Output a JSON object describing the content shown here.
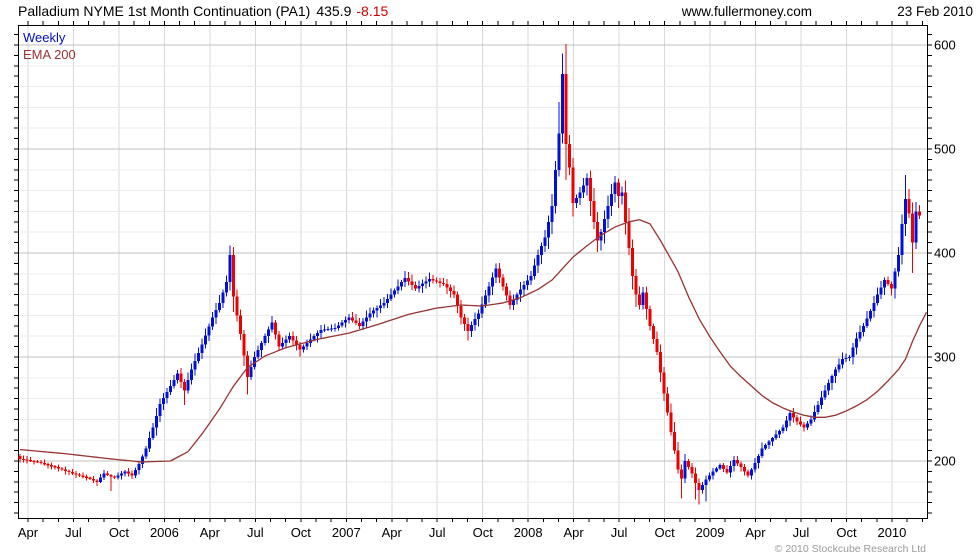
{
  "header": {
    "title": "Palladium NYME 1st Month Continuation (PA1)",
    "last_price": "435.9",
    "change": "-8.15",
    "site": "www.fullermoney.com",
    "date": "23 Feb 2010"
  },
  "legend": {
    "series": "Weekly",
    "overlay": "EMA 200"
  },
  "footer": {
    "copyright": "© 2010 Stockcube Research Ltd"
  },
  "colors": {
    "up": "#0010d8",
    "down": "#ee0000",
    "ema": "#993333",
    "change_text": "#cc0000",
    "grid_minor": "#ebebeb",
    "grid_major": "#c0c0c0",
    "grid_vert": "#d9d9d9",
    "axis": "#000000",
    "legend_series": "#0010c8",
    "legend_overlay": "#993333",
    "copyright": "#9a9a9a"
  },
  "chart_data": {
    "type": "candlestick",
    "title": "Palladium NYME 1st Month Continuation (PA1)",
    "interval": "weekly",
    "start_week": "2005-03-16",
    "weeks": 258,
    "last_close": 435.9,
    "change": -8.15,
    "ylim": [
      145,
      619
    ],
    "y_ticks": [
      200,
      300,
      400,
      500,
      600
    ],
    "y_minor_step": 20,
    "x_labels": [
      "Apr",
      "Jul",
      "Oct",
      "2006",
      "Apr",
      "Jul",
      "Oct",
      "2007",
      "Apr",
      "Jul",
      "Oct",
      "2008",
      "Apr",
      "Jul",
      "Oct",
      "2009",
      "Apr",
      "Jul",
      "Oct",
      "2010"
    ],
    "grid": true,
    "legend_position": "top-left",
    "close_anchors": [
      [
        0,
        202
      ],
      [
        5,
        199
      ],
      [
        10,
        194
      ],
      [
        15,
        188
      ],
      [
        19,
        184
      ],
      [
        22,
        180
      ],
      [
        24,
        188
      ],
      [
        27,
        184
      ],
      [
        30,
        190
      ],
      [
        32,
        186
      ],
      [
        34,
        197
      ],
      [
        36,
        212
      ],
      [
        38,
        232
      ],
      [
        40,
        255
      ],
      [
        43,
        272
      ],
      [
        45,
        284
      ],
      [
        47,
        268
      ],
      [
        49,
        288
      ],
      [
        52,
        312
      ],
      [
        55,
        338
      ],
      [
        57,
        352
      ],
      [
        59,
        372
      ],
      [
        60,
        398
      ],
      [
        61,
        358
      ],
      [
        63,
        322
      ],
      [
        65,
        281
      ],
      [
        67,
        300
      ],
      [
        70,
        320
      ],
      [
        72,
        333
      ],
      [
        74,
        310
      ],
      [
        77,
        320
      ],
      [
        80,
        307
      ],
      [
        83,
        317
      ],
      [
        86,
        326
      ],
      [
        90,
        328
      ],
      [
        94,
        338
      ],
      [
        97,
        330
      ],
      [
        100,
        342
      ],
      [
        104,
        352
      ],
      [
        108,
        368
      ],
      [
        110,
        376
      ],
      [
        113,
        366
      ],
      [
        117,
        375
      ],
      [
        121,
        370
      ],
      [
        124,
        360
      ],
      [
        126,
        338
      ],
      [
        128,
        325
      ],
      [
        131,
        342
      ],
      [
        134,
        368
      ],
      [
        136,
        385
      ],
      [
        138,
        368
      ],
      [
        140,
        350
      ],
      [
        143,
        365
      ],
      [
        146,
        378
      ],
      [
        148,
        398
      ],
      [
        150,
        415
      ],
      [
        152,
        445
      ],
      [
        154,
        515
      ],
      [
        155,
        572
      ],
      [
        156,
        505
      ],
      [
        157,
        482
      ],
      [
        158,
        448
      ],
      [
        160,
        458
      ],
      [
        162,
        472
      ],
      [
        163,
        450
      ],
      [
        164,
        430
      ],
      [
        165,
        412
      ],
      [
        166,
        420
      ],
      [
        168,
        445
      ],
      [
        170,
        468
      ],
      [
        171,
        455
      ],
      [
        172,
        458
      ],
      [
        173,
        430
      ],
      [
        174,
        405
      ],
      [
        175,
        378
      ],
      [
        176,
        360
      ],
      [
        177,
        350
      ],
      [
        178,
        362
      ],
      [
        180,
        330
      ],
      [
        182,
        305
      ],
      [
        184,
        265
      ],
      [
        186,
        228
      ],
      [
        188,
        192
      ],
      [
        189,
        183
      ],
      [
        190,
        200
      ],
      [
        192,
        188
      ],
      [
        193,
        179
      ],
      [
        194,
        172
      ],
      [
        196,
        182
      ],
      [
        198,
        190
      ],
      [
        200,
        196
      ],
      [
        202,
        189
      ],
      [
        204,
        201
      ],
      [
        206,
        194
      ],
      [
        208,
        186
      ],
      [
        210,
        198
      ],
      [
        212,
        212
      ],
      [
        215,
        222
      ],
      [
        218,
        232
      ],
      [
        220,
        246
      ],
      [
        222,
        238
      ],
      [
        224,
        232
      ],
      [
        226,
        240
      ],
      [
        228,
        254
      ],
      [
        231,
        275
      ],
      [
        233,
        288
      ],
      [
        235,
        298
      ],
      [
        237,
        300
      ],
      [
        239,
        318
      ],
      [
        241,
        330
      ],
      [
        243,
        344
      ],
      [
        245,
        360
      ],
      [
        247,
        374
      ],
      [
        249,
        366
      ],
      [
        251,
        398
      ],
      [
        252,
        428
      ],
      [
        253,
        452
      ],
      [
        254,
        438
      ],
      [
        255,
        410
      ],
      [
        256,
        440
      ],
      [
        257,
        435.9
      ]
    ],
    "ema_anchors": [
      [
        0,
        211
      ],
      [
        13,
        207
      ],
      [
        26,
        202
      ],
      [
        35,
        199
      ],
      [
        43,
        200
      ],
      [
        48,
        209
      ],
      [
        52,
        226
      ],
      [
        57,
        250
      ],
      [
        61,
        272
      ],
      [
        65,
        290
      ],
      [
        70,
        301
      ],
      [
        76,
        309
      ],
      [
        85,
        317
      ],
      [
        94,
        323
      ],
      [
        102,
        331
      ],
      [
        111,
        341
      ],
      [
        119,
        347
      ],
      [
        126,
        350
      ],
      [
        132,
        349
      ],
      [
        138,
        352
      ],
      [
        143,
        357
      ],
      [
        148,
        365
      ],
      [
        152,
        374
      ],
      [
        155,
        385
      ],
      [
        158,
        396
      ],
      [
        162,
        407
      ],
      [
        166,
        417
      ],
      [
        170,
        425
      ],
      [
        174,
        430
      ],
      [
        177,
        432
      ],
      [
        180,
        428
      ],
      [
        183,
        412
      ],
      [
        185,
        400
      ],
      [
        188,
        382
      ],
      [
        191,
        358
      ],
      [
        194,
        337
      ],
      [
        197,
        320
      ],
      [
        200,
        305
      ],
      [
        203,
        291
      ],
      [
        206,
        281
      ],
      [
        209,
        272
      ],
      [
        212,
        263
      ],
      [
        215,
        256
      ],
      [
        218,
        251
      ],
      [
        221,
        247
      ],
      [
        224,
        244
      ],
      [
        227,
        242
      ],
      [
        230,
        242
      ],
      [
        233,
        244
      ],
      [
        236,
        248
      ],
      [
        239,
        253
      ],
      [
        242,
        259
      ],
      [
        245,
        267
      ],
      [
        248,
        277
      ],
      [
        251,
        288
      ],
      [
        253,
        298
      ],
      [
        255,
        315
      ],
      [
        257,
        330
      ],
      [
        259,
        343
      ]
    ],
    "wick_overrides": [
      [
        22,
        null,
        176
      ],
      [
        26,
        null,
        171
      ],
      [
        47,
        null,
        254
      ],
      [
        60,
        407,
        null
      ],
      [
        65,
        null,
        264
      ],
      [
        128,
        null,
        316
      ],
      [
        154,
        545,
        null
      ],
      [
        155,
        592,
        null
      ],
      [
        156,
        601,
        470
      ],
      [
        189,
        null,
        164
      ],
      [
        193,
        null,
        163
      ],
      [
        194,
        null,
        158
      ],
      [
        196,
        null,
        161
      ],
      [
        253,
        475,
        null
      ],
      [
        255,
        null,
        381
      ]
    ]
  }
}
